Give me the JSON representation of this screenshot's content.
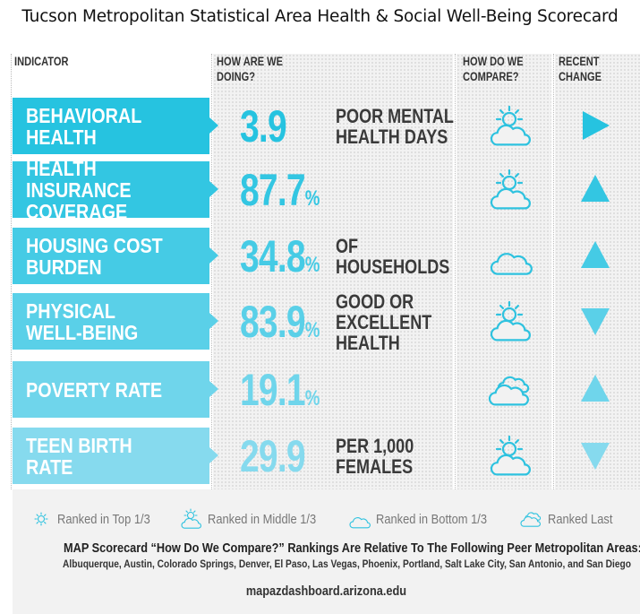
{
  "title": "Tucson Metropolitan Statistical Area Health & Social Well-Being Scorecard",
  "columns": {
    "indicator": "INDICATOR",
    "doing": "HOW ARE WE\nDOING?",
    "compare": "HOW DO WE\nCOMPARE?",
    "change": "RECENT\nCHANGE"
  },
  "chart_data": {
    "type": "table",
    "rows": [
      {
        "indicator": "BEHAVIORAL HEALTH",
        "value": "3.9",
        "unit": "",
        "description": "POOR MENTAL\nHEALTH DAYS",
        "compare": "Ranked in Middle 1/3",
        "compare_icon": "sun-behind-cloud-icon",
        "change": "right",
        "change_icon": "arrow-right-icon",
        "color": "#26c3e0"
      },
      {
        "indicator": "HEALTH INSURANCE\nCOVERAGE",
        "value": "87.7",
        "unit": "%",
        "description": "",
        "compare": "Ranked in Middle 1/3",
        "compare_icon": "sun-behind-cloud-icon",
        "change": "up",
        "change_icon": "arrow-up-icon",
        "color": "#33c6e2"
      },
      {
        "indicator": "HOUSING COST\nBURDEN",
        "value": "34.8",
        "unit": "%",
        "description": "OF\nHOUSEHOLDS",
        "compare": "Ranked in Bottom 1/3",
        "compare_icon": "cloud-icon",
        "change": "up",
        "change_icon": "arrow-up-icon",
        "color": "#45cbe5"
      },
      {
        "indicator": "PHYSICAL\nWELL-BEING",
        "value": "83.9",
        "unit": "%",
        "description": "GOOD OR\nEXCELLENT\nHEALTH",
        "compare": "Ranked in Middle 1/3",
        "compare_icon": "sun-behind-cloud-icon",
        "change": "down",
        "change_icon": "arrow-down-icon",
        "color": "#5ad0e8"
      },
      {
        "indicator": "POVERTY RATE",
        "value": "19.1",
        "unit": "%",
        "description": "",
        "compare": "Ranked Last",
        "compare_icon": "storm-cloud-icon",
        "change": "up",
        "change_icon": "arrow-up-icon",
        "color": "#6fd5eb"
      },
      {
        "indicator": "TEEN BIRTH RATE",
        "value": "29.9",
        "unit": "",
        "description": "PER 1,000\nFEMALES",
        "compare": "Ranked in Middle 1/3",
        "compare_icon": "sun-behind-cloud-icon",
        "change": "down",
        "change_icon": "arrow-down-icon",
        "color": "#86daee"
      }
    ]
  },
  "legend": [
    {
      "label": "Ranked in Top 1/3",
      "icon": "sun-icon"
    },
    {
      "label": "Ranked in Middle 1/3",
      "icon": "sun-behind-cloud-icon"
    },
    {
      "label": "Ranked in Bottom 1/3",
      "icon": "cloud-icon"
    },
    {
      "label": "Ranked Last",
      "icon": "storm-cloud-icon"
    }
  ],
  "footer": {
    "line1": "MAP Scorecard “How Do We Compare?” Rankings Are Relative To The Following Peer Metropolitan Areas:",
    "line2": "Albuquerque, Austin, Colorado Springs, Denver, El Paso, Las Vegas, Phoenix, Portland, Salt Lake City, San Antonio, and San Diego",
    "url": "mapazdashboard.arizona.edu"
  },
  "colors": {
    "icon": "#2ec2df",
    "text_dark": "#3a3a3a",
    "panel": "#f2f2f2"
  }
}
